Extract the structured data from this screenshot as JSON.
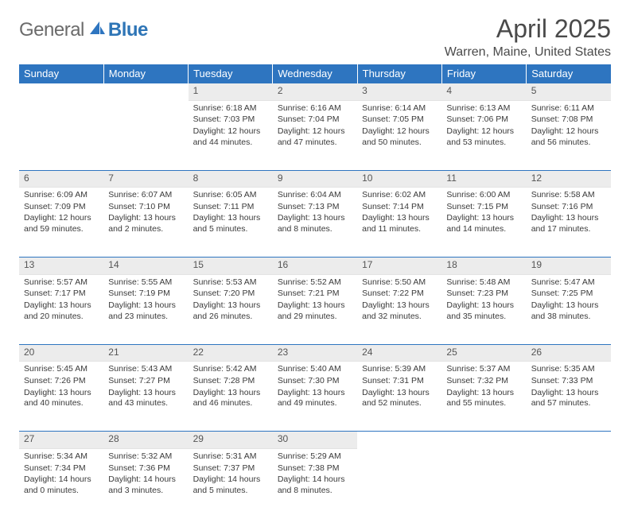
{
  "brand": {
    "part1": "General",
    "part2": "Blue"
  },
  "title": "April 2025",
  "location": "Warren, Maine, United States",
  "colors": {
    "headerBg": "#2e75c0",
    "headerFg": "#ffffff",
    "dayNumBg": "#ececec",
    "ruleColor": "#2e75c0",
    "text": "#3a3a3a"
  },
  "dayHeaders": [
    "Sunday",
    "Monday",
    "Tuesday",
    "Wednesday",
    "Thursday",
    "Friday",
    "Saturday"
  ],
  "weeks": [
    [
      null,
      null,
      {
        "n": "1",
        "sr": "6:18 AM",
        "ss": "7:03 PM",
        "dl": "12 hours and 44 minutes."
      },
      {
        "n": "2",
        "sr": "6:16 AM",
        "ss": "7:04 PM",
        "dl": "12 hours and 47 minutes."
      },
      {
        "n": "3",
        "sr": "6:14 AM",
        "ss": "7:05 PM",
        "dl": "12 hours and 50 minutes."
      },
      {
        "n": "4",
        "sr": "6:13 AM",
        "ss": "7:06 PM",
        "dl": "12 hours and 53 minutes."
      },
      {
        "n": "5",
        "sr": "6:11 AM",
        "ss": "7:08 PM",
        "dl": "12 hours and 56 minutes."
      }
    ],
    [
      {
        "n": "6",
        "sr": "6:09 AM",
        "ss": "7:09 PM",
        "dl": "12 hours and 59 minutes."
      },
      {
        "n": "7",
        "sr": "6:07 AM",
        "ss": "7:10 PM",
        "dl": "13 hours and 2 minutes."
      },
      {
        "n": "8",
        "sr": "6:05 AM",
        "ss": "7:11 PM",
        "dl": "13 hours and 5 minutes."
      },
      {
        "n": "9",
        "sr": "6:04 AM",
        "ss": "7:13 PM",
        "dl": "13 hours and 8 minutes."
      },
      {
        "n": "10",
        "sr": "6:02 AM",
        "ss": "7:14 PM",
        "dl": "13 hours and 11 minutes."
      },
      {
        "n": "11",
        "sr": "6:00 AM",
        "ss": "7:15 PM",
        "dl": "13 hours and 14 minutes."
      },
      {
        "n": "12",
        "sr": "5:58 AM",
        "ss": "7:16 PM",
        "dl": "13 hours and 17 minutes."
      }
    ],
    [
      {
        "n": "13",
        "sr": "5:57 AM",
        "ss": "7:17 PM",
        "dl": "13 hours and 20 minutes."
      },
      {
        "n": "14",
        "sr": "5:55 AM",
        "ss": "7:19 PM",
        "dl": "13 hours and 23 minutes."
      },
      {
        "n": "15",
        "sr": "5:53 AM",
        "ss": "7:20 PM",
        "dl": "13 hours and 26 minutes."
      },
      {
        "n": "16",
        "sr": "5:52 AM",
        "ss": "7:21 PM",
        "dl": "13 hours and 29 minutes."
      },
      {
        "n": "17",
        "sr": "5:50 AM",
        "ss": "7:22 PM",
        "dl": "13 hours and 32 minutes."
      },
      {
        "n": "18",
        "sr": "5:48 AM",
        "ss": "7:23 PM",
        "dl": "13 hours and 35 minutes."
      },
      {
        "n": "19",
        "sr": "5:47 AM",
        "ss": "7:25 PM",
        "dl": "13 hours and 38 minutes."
      }
    ],
    [
      {
        "n": "20",
        "sr": "5:45 AM",
        "ss": "7:26 PM",
        "dl": "13 hours and 40 minutes."
      },
      {
        "n": "21",
        "sr": "5:43 AM",
        "ss": "7:27 PM",
        "dl": "13 hours and 43 minutes."
      },
      {
        "n": "22",
        "sr": "5:42 AM",
        "ss": "7:28 PM",
        "dl": "13 hours and 46 minutes."
      },
      {
        "n": "23",
        "sr": "5:40 AM",
        "ss": "7:30 PM",
        "dl": "13 hours and 49 minutes."
      },
      {
        "n": "24",
        "sr": "5:39 AM",
        "ss": "7:31 PM",
        "dl": "13 hours and 52 minutes."
      },
      {
        "n": "25",
        "sr": "5:37 AM",
        "ss": "7:32 PM",
        "dl": "13 hours and 55 minutes."
      },
      {
        "n": "26",
        "sr": "5:35 AM",
        "ss": "7:33 PM",
        "dl": "13 hours and 57 minutes."
      }
    ],
    [
      {
        "n": "27",
        "sr": "5:34 AM",
        "ss": "7:34 PM",
        "dl": "14 hours and 0 minutes."
      },
      {
        "n": "28",
        "sr": "5:32 AM",
        "ss": "7:36 PM",
        "dl": "14 hours and 3 minutes."
      },
      {
        "n": "29",
        "sr": "5:31 AM",
        "ss": "7:37 PM",
        "dl": "14 hours and 5 minutes."
      },
      {
        "n": "30",
        "sr": "5:29 AM",
        "ss": "7:38 PM",
        "dl": "14 hours and 8 minutes."
      },
      null,
      null,
      null
    ]
  ],
  "labels": {
    "sunrise": "Sunrise: ",
    "sunset": "Sunset: ",
    "daylight": "Daylight: "
  }
}
